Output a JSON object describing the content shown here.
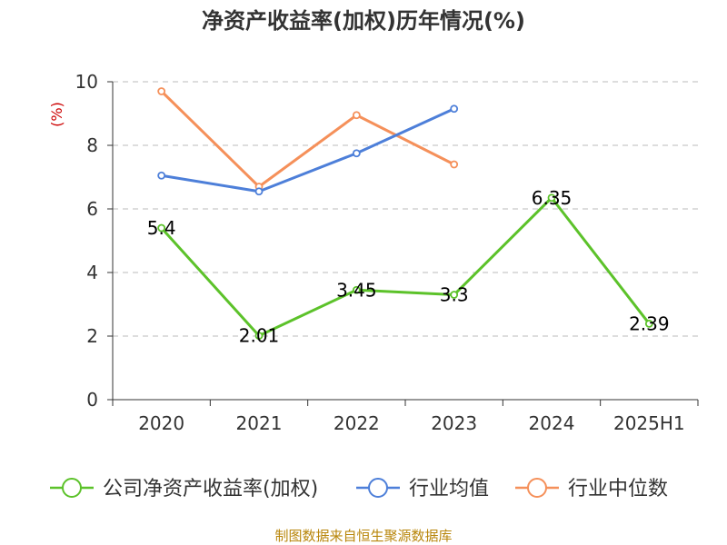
{
  "chart_data": {
    "type": "line",
    "title": "净资产收益率(加权)历年情况(%)",
    "ylabel": "(%)",
    "xlabel": "",
    "categories": [
      "2020",
      "2021",
      "2022",
      "2023",
      "2024",
      "2025H1"
    ],
    "ylim": [
      0,
      10
    ],
    "yticks": [
      0,
      2,
      4,
      6,
      8,
      10
    ],
    "grid": true,
    "legend_position": "bottom",
    "series": [
      {
        "name": "公司净资产收益率(加权)",
        "color": "#5cc22a",
        "values": [
          5.4,
          2.01,
          3.45,
          3.3,
          6.35,
          2.39
        ],
        "data_labels": [
          "5.4",
          "2.01",
          "3.45",
          "3.3",
          "6.35",
          "2.39"
        ]
      },
      {
        "name": "行业均值",
        "color": "#4d7fd9",
        "values": [
          7.05,
          6.55,
          7.75,
          9.15,
          null,
          null
        ]
      },
      {
        "name": "行业中位数",
        "color": "#f5905a",
        "values": [
          9.7,
          6.7,
          8.95,
          7.4,
          null,
          null
        ]
      }
    ],
    "source": "制图数据来自恒生聚源数据库"
  }
}
